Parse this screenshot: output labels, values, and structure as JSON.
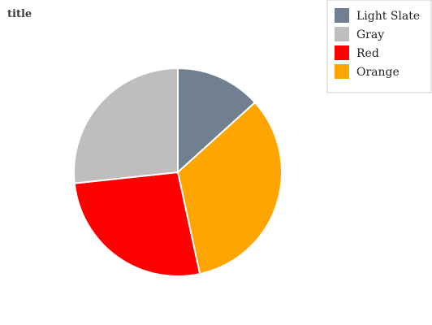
{
  "chart_data": {
    "type": "pie",
    "title": "title",
    "start_angle_deg": 0,
    "direction": "clockwise",
    "legend_position": "top-right",
    "slices": [
      {
        "label": "Light Slate",
        "value": 13.3,
        "color": "#708090"
      },
      {
        "label": "Orange",
        "value": 33.3,
        "color": "#FFA500"
      },
      {
        "label": "Red",
        "value": 26.7,
        "color": "#FF0000"
      },
      {
        "label": "Gray",
        "value": 26.7,
        "color": "#BEBEBE"
      }
    ],
    "legend": [
      {
        "label": "Light Slate",
        "color": "#708090"
      },
      {
        "label": "Gray",
        "color": "#BEBEBE"
      },
      {
        "label": "Red",
        "color": "#FF0000"
      },
      {
        "label": "Orange",
        "color": "#FFA500"
      }
    ]
  }
}
